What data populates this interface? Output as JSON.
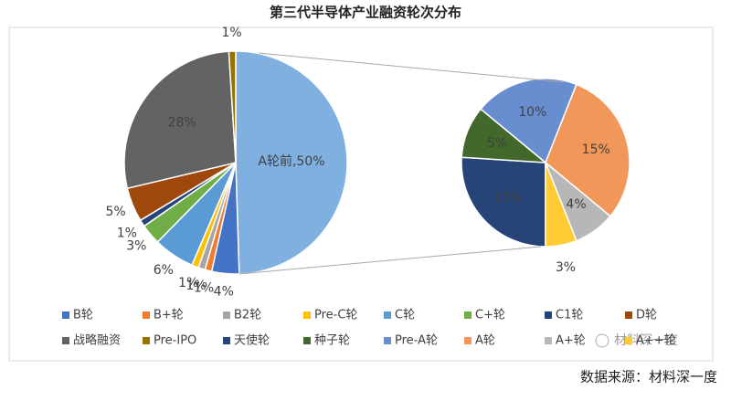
{
  "chart_data": {
    "type": "pie",
    "title": "第三代半导体产业融资轮次分布",
    "slices": [
      {
        "name": "B轮",
        "value": 4,
        "value_label": "4%",
        "color": "#4472c4"
      },
      {
        "name": "B+轮",
        "value": 1,
        "value_label": "1%",
        "color": "#ed7d31"
      },
      {
        "name": "B2轮",
        "value": 1,
        "value_label": "1%",
        "color": "#a5a5a5"
      },
      {
        "name": "Pre-C轮",
        "value": 1,
        "value_label": "1%",
        "color": "#ffc000"
      },
      {
        "name": "C轮",
        "value": 6,
        "value_label": "6%",
        "color": "#5b9bd5"
      },
      {
        "name": "C+轮",
        "value": 3,
        "value_label": "3%",
        "color": "#70ad47"
      },
      {
        "name": "C1轮",
        "value": 1,
        "value_label": "1%",
        "color": "#264478"
      },
      {
        "name": "D轮",
        "value": 5,
        "value_label": "5%",
        "color": "#9e480e"
      },
      {
        "name": "战略融资",
        "value": 28,
        "value_label": "28%",
        "color": "#636363"
      },
      {
        "name": "Pre-IPO",
        "value": 1,
        "value_label": "1%",
        "color": "#997300"
      }
    ],
    "aggregate": {
      "value": 50,
      "value_label": "A轮前,50%",
      "color": "#7fb0df",
      "slices": [
        {
          "name": "天使轮",
          "value": 13,
          "value_label": "13%",
          "color": "#264478"
        },
        {
          "name": "种子轮",
          "value": 5,
          "value_label": "5%",
          "color": "#43682b"
        },
        {
          "name": "Pre-A轮",
          "value": 10,
          "value_label": "10%",
          "color": "#698ed0"
        },
        {
          "name": "A轮",
          "value": 15,
          "value_label": "15%",
          "color": "#f1975a"
        },
        {
          "name": "A+轮",
          "value": 4,
          "value_label": "4%",
          "color": "#b7b7b7"
        },
        {
          "name": "A++轮",
          "value": 3,
          "value_label": "3%",
          "color": "#ffcd33"
        }
      ]
    },
    "watermark": "材料深一度",
    "source": "数据来源：材料深一度"
  }
}
